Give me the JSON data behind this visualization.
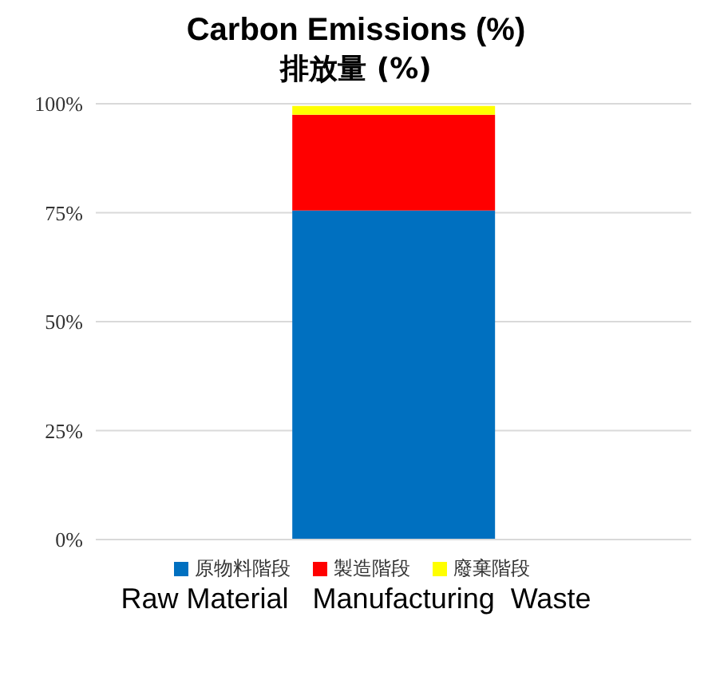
{
  "chart_data": {
    "type": "bar",
    "title": "Carbon Emissions (%)",
    "subtitle": "排放量 (%)",
    "categories": [
      null
    ],
    "stacked": true,
    "series": [
      {
        "name": "原物料階段",
        "color": "#0070c0",
        "values": [
          75.5
        ]
      },
      {
        "name": "製造階段",
        "color": "#ff0000",
        "values": [
          22
        ]
      },
      {
        "name": "廢棄階段",
        "color": "#ffff00",
        "values": [
          2
        ]
      }
    ],
    "ylim": [
      0,
      100
    ],
    "yticks": [
      {
        "value": 0,
        "label": "0%"
      },
      {
        "value": 25,
        "label": "25%"
      },
      {
        "value": 50,
        "label": "50%"
      },
      {
        "value": 75,
        "label": "75%"
      },
      {
        "value": 100,
        "label": "100%"
      }
    ],
    "grid": "y",
    "legend": "bottom",
    "annotations": [
      "Raw Material   Manufacturing  Waste"
    ]
  }
}
